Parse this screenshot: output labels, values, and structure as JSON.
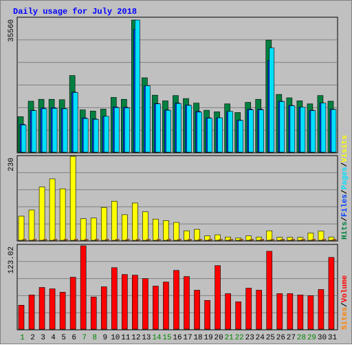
{
  "chart_data": {
    "type": "bar",
    "title": "Daily usage for July 2018",
    "days": [
      "1",
      "2",
      "3",
      "4",
      "5",
      "6",
      "7",
      "8",
      "9",
      "10",
      "11",
      "12",
      "13",
      "14",
      "15",
      "16",
      "17",
      "18",
      "19",
      "20",
      "21",
      "22",
      "23",
      "24",
      "25",
      "26",
      "27",
      "28",
      "29",
      "30",
      "31"
    ],
    "weekend_days": [
      "1",
      "7",
      "8",
      "14",
      "15",
      "21",
      "22",
      "28",
      "29"
    ],
    "panels": [
      {
        "id": "top",
        "max_label": "35560",
        "ymax": 35560,
        "series": [
          {
            "name": "Hits",
            "color": "#008040",
            "values": [
              9400,
              13500,
              14000,
              14000,
              13900,
              20300,
              11200,
              10900,
              11400,
              14500,
              14000,
              35000,
              19700,
              15100,
              13600,
              15000,
              14200,
              13000,
              11100,
              10700,
              12800,
              10500,
              13200,
              14000,
              29700,
              15300,
              14400,
              13600,
              12800,
              15000,
              13500
            ]
          },
          {
            "name": "Files",
            "color": "#0040ff",
            "values": [
              7400,
              11100,
              11700,
              11800,
              11600,
              15900,
              9100,
              8800,
              9500,
              12000,
              11900,
              32600,
              17600,
              12900,
              11200,
              13000,
              12500,
              10800,
              9100,
              9100,
              10800,
              8500,
              11400,
              11400,
              24300,
              13500,
              12400,
              11900,
              11100,
              13000,
              11400
            ]
          },
          {
            "name": "Pages",
            "color": "#00e0ff",
            "values": [
              7200,
              11000,
              11500,
              11600,
              11500,
              15800,
              8900,
              8700,
              9500,
              11800,
              11700,
              35000,
              17600,
              12800,
              11100,
              12900,
              12400,
              10600,
              9000,
              9100,
              10800,
              8400,
              11200,
              11200,
              27600,
              13400,
              12300,
              11900,
              11000,
              13000,
              11300
            ]
          }
        ]
      },
      {
        "id": "mid",
        "max_label": "230",
        "ymax": 230,
        "series": [
          {
            "name": "Visits",
            "color": "#ffff00",
            "values": [
              66,
              83,
              146,
              168,
              141,
              230,
              59,
              61,
              90,
              107,
              70,
              102,
              78,
              58,
              54,
              49,
              26,
              30,
              12,
              15,
              9,
              6,
              12,
              9,
              26,
              8,
              8,
              8,
              20,
              25,
              9
            ]
          },
          {
            "name": "Sites",
            "color": "#ff8000",
            "values": [
              0,
              0,
              0,
              0,
              0,
              0,
              0,
              0,
              0,
              0,
              0,
              0,
              0,
              0,
              0,
              0,
              0,
              0,
              0,
              0,
              0,
              0,
              0,
              0,
              0,
              0,
              0,
              0,
              0,
              0,
              0
            ]
          }
        ]
      },
      {
        "id": "bot",
        "max_label": "123.02",
        "ymax": 123.02,
        "series": [
          {
            "name": "Volume",
            "color": "#ff0000",
            "values": [
              35,
              50,
              61,
              59,
              54,
              76,
              122,
              47,
              62,
              90,
              80,
              79,
              74,
              63,
              69,
              86,
              77,
              57,
              42,
              93,
              52,
              40,
              60,
              57,
              114,
              52,
              52,
              50,
              49,
              58,
              105
            ]
          }
        ]
      }
    ],
    "side_labels": {
      "top": [
        {
          "text": "Hits",
          "color": "#008040"
        },
        {
          "text": "/",
          "color": "#000000"
        },
        {
          "text": "Files",
          "color": "#0040ff"
        },
        {
          "text": "/",
          "color": "#000000"
        },
        {
          "text": "Pages",
          "color": "#00e0ff"
        },
        {
          "text": "/",
          "color": "#000000"
        },
        {
          "text": "Visits",
          "color": "#ffff00"
        }
      ],
      "bottom": [
        {
          "text": "Sites",
          "color": "#ff8000"
        },
        {
          "text": "/",
          "color": "#000000"
        },
        {
          "text": "Volume",
          "color": "#ff0000"
        }
      ]
    },
    "colors": {
      "background": "#c0c0c0",
      "plot_bg": "#c0c0c0",
      "grid": "#808080",
      "title": "#0000ff",
      "weekday": "#000000",
      "weekend": "#008000",
      "axis_label": "#000000"
    }
  }
}
